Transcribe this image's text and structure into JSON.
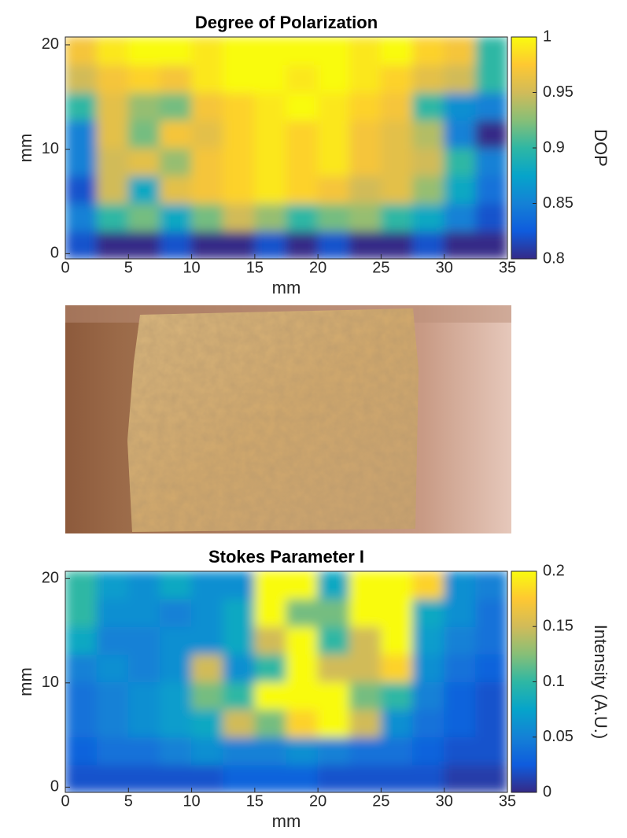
{
  "chart_data": [
    {
      "type": "heatmap",
      "title": "Degree of Polarization",
      "x_label": "mm",
      "y_label": "mm",
      "colorbar_label": "DOP",
      "xlim": [
        0,
        35
      ],
      "xticks": [
        0,
        5,
        10,
        15,
        20,
        25,
        30,
        35
      ],
      "ylim": [
        -0.5,
        20.75
      ],
      "yticks": [
        0,
        10,
        20
      ],
      "clim": [
        0.8,
        1
      ],
      "cticks": [
        0.8,
        0.85,
        0.9,
        0.95,
        1
      ],
      "colormap": [
        "#352a87",
        "#0f5cdd",
        "#1481d6",
        "#06a4ca",
        "#2eb7a4",
        "#87bf77",
        "#d1bb59",
        "#fec832",
        "#f9fb0e"
      ],
      "z": [
        [
          0.82,
          0.8,
          0.8,
          0.82,
          0.8,
          0.8,
          0.82,
          0.8,
          0.82,
          0.8,
          0.8,
          0.82,
          0.8,
          0.8
        ],
        [
          0.85,
          0.9,
          0.92,
          0.88,
          0.92,
          0.95,
          0.93,
          0.9,
          0.92,
          0.93,
          0.9,
          0.88,
          0.85,
          0.82
        ],
        [
          0.82,
          0.95,
          0.88,
          0.96,
          0.97,
          0.98,
          0.99,
          0.98,
          0.97,
          0.95,
          0.96,
          0.93,
          0.88,
          0.84
        ],
        [
          0.85,
          0.95,
          0.96,
          0.93,
          0.97,
          0.98,
          0.99,
          0.98,
          0.99,
          0.97,
          0.96,
          0.95,
          0.9,
          0.85
        ],
        [
          0.85,
          0.96,
          0.92,
          0.97,
          0.96,
          0.98,
          0.99,
          0.98,
          0.99,
          0.97,
          0.96,
          0.94,
          0.85,
          0.8
        ],
        [
          0.9,
          0.96,
          0.93,
          0.92,
          0.97,
          0.98,
          0.99,
          1,
          0.99,
          0.98,
          0.97,
          0.9,
          0.86,
          0.85
        ],
        [
          0.95,
          0.97,
          0.98,
          0.97,
          0.99,
          1,
          1,
          0.99,
          1,
          0.99,
          0.98,
          0.96,
          0.95,
          0.9
        ],
        [
          0.97,
          0.99,
          1,
          1,
          0.99,
          1,
          1,
          1,
          1,
          0.99,
          1,
          0.98,
          0.97,
          0.9
        ]
      ]
    },
    {
      "type": "heatmap",
      "title": "Stokes Parameter I",
      "x_label": "mm",
      "y_label": "mm",
      "colorbar_label": "Intensity (A.U.)",
      "xlim": [
        0,
        35
      ],
      "xticks": [
        0,
        5,
        10,
        15,
        20,
        25,
        30,
        35
      ],
      "ylim": [
        -0.5,
        20.7
      ],
      "yticks": [
        0,
        10,
        20
      ],
      "clim": [
        0,
        0.2
      ],
      "cticks": [
        0,
        0.05,
        0.1,
        0.15,
        0.2
      ],
      "colormap": [
        "#352a87",
        "#0f5cdd",
        "#1481d6",
        "#06a4ca",
        "#2eb7a4",
        "#87bf77",
        "#d1bb59",
        "#fec832",
        "#f9fb0e"
      ],
      "z": [
        [
          0.02,
          0.02,
          0.02,
          0.02,
          0.02,
          0.03,
          0.03,
          0.03,
          0.02,
          0.02,
          0.02,
          0.02,
          0.01,
          0.01
        ],
        [
          0.03,
          0.04,
          0.04,
          0.05,
          0.06,
          0.05,
          0.05,
          0.06,
          0.05,
          0.04,
          0.04,
          0.03,
          0.02,
          0.02
        ],
        [
          0.04,
          0.05,
          0.06,
          0.07,
          0.08,
          0.15,
          0.12,
          0.18,
          0.2,
          0.15,
          0.06,
          0.04,
          0.03,
          0.02
        ],
        [
          0.04,
          0.05,
          0.06,
          0.07,
          0.12,
          0.1,
          0.2,
          0.2,
          0.2,
          0.12,
          0.1,
          0.05,
          0.03,
          0.02
        ],
        [
          0.05,
          0.06,
          0.05,
          0.06,
          0.15,
          0.06,
          0.1,
          0.2,
          0.15,
          0.15,
          0.18,
          0.06,
          0.04,
          0.03
        ],
        [
          0.08,
          0.05,
          0.05,
          0.06,
          0.06,
          0.08,
          0.15,
          0.2,
          0.1,
          0.15,
          0.2,
          0.07,
          0.05,
          0.04
        ],
        [
          0.1,
          0.06,
          0.06,
          0.05,
          0.06,
          0.08,
          0.2,
          0.12,
          0.12,
          0.2,
          0.2,
          0.08,
          0.06,
          0.04
        ],
        [
          0.1,
          0.07,
          0.06,
          0.08,
          0.06,
          0.06,
          0.2,
          0.2,
          0.08,
          0.2,
          0.2,
          0.18,
          0.06,
          0.05
        ]
      ]
    }
  ]
}
